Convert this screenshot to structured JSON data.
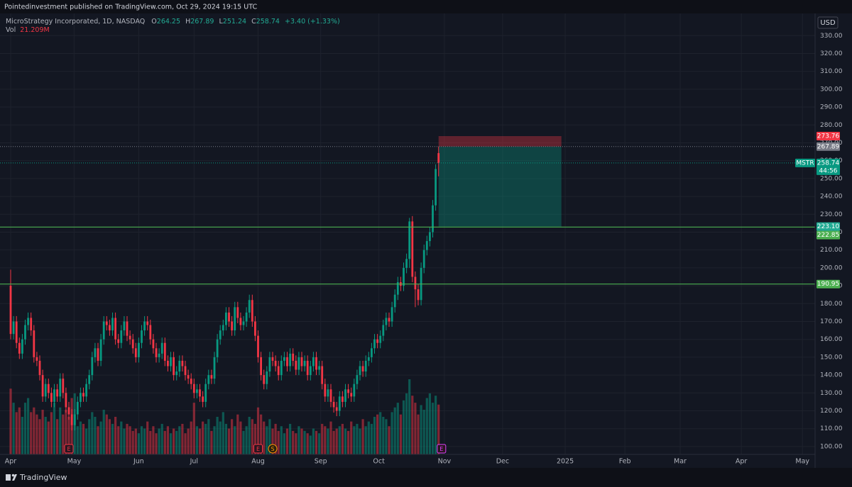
{
  "header": {
    "published": "Pointedinvestment published on TradingView.com, Oct 29, 2024 19:15 UTC"
  },
  "chart_data": {
    "type": "candlestick",
    "title": "MicroStrategy Incorporated, 1D, NASDAQ",
    "ohlc_keys": [
      "O",
      "H",
      "L",
      "C"
    ],
    "change": "+3.40 (+1.33%)",
    "volume_title": "Vol",
    "volume_label": "21.209M",
    "currency": "USD",
    "symbol": "MSTR",
    "countdown": "44:56",
    "colors": {
      "up": "#089981",
      "down": "#f23645",
      "level": "#4caf50"
    },
    "candles": [
      [
        190,
        199,
        160,
        163
      ],
      [
        163,
        173,
        160,
        170
      ],
      [
        170,
        173,
        155,
        158
      ],
      [
        158,
        161,
        149,
        152
      ],
      [
        152,
        163,
        149,
        160
      ],
      [
        160,
        171,
        157,
        168
      ],
      [
        168,
        175,
        165,
        172
      ],
      [
        172,
        175,
        162,
        165
      ],
      [
        165,
        168,
        147,
        150
      ],
      [
        150,
        153,
        145,
        148
      ],
      [
        148,
        151,
        137,
        140
      ],
      [
        140,
        143,
        125,
        128
      ],
      [
        128,
        138,
        125,
        135
      ],
      [
        135,
        138,
        127,
        130
      ],
      [
        130,
        133,
        122,
        125
      ],
      [
        125,
        135,
        122,
        132
      ],
      [
        132,
        135,
        125,
        128
      ],
      [
        128,
        141,
        125,
        138
      ],
      [
        138,
        141,
        127,
        130
      ],
      [
        130,
        133,
        119,
        122
      ],
      [
        122,
        125,
        115,
        118
      ],
      [
        118,
        121,
        109,
        112
      ],
      [
        112,
        121,
        109,
        118
      ],
      [
        118,
        128,
        115,
        125
      ],
      [
        125,
        133,
        122,
        130
      ],
      [
        130,
        133,
        125,
        128
      ],
      [
        128,
        138,
        125,
        135
      ],
      [
        135,
        143,
        132,
        140
      ],
      [
        140,
        153,
        137,
        150
      ],
      [
        150,
        158,
        147,
        155
      ],
      [
        155,
        158,
        145,
        148
      ],
      [
        148,
        163,
        145,
        160
      ],
      [
        160,
        173,
        157,
        170
      ],
      [
        170,
        173,
        165,
        168
      ],
      [
        168,
        171,
        162,
        165
      ],
      [
        165,
        175,
        162,
        172
      ],
      [
        172,
        175,
        157,
        160
      ],
      [
        160,
        163,
        155,
        158
      ],
      [
        158,
        168,
        155,
        165
      ],
      [
        165,
        173,
        162,
        170
      ],
      [
        170,
        173,
        159,
        162
      ],
      [
        162,
        165,
        157,
        160
      ],
      [
        160,
        163,
        152,
        155
      ],
      [
        155,
        158,
        147,
        150
      ],
      [
        150,
        161,
        147,
        158
      ],
      [
        158,
        168,
        155,
        165
      ],
      [
        165,
        173,
        162,
        170
      ],
      [
        170,
        173,
        165,
        168
      ],
      [
        168,
        171,
        157,
        160
      ],
      [
        160,
        163,
        152,
        155
      ],
      [
        155,
        158,
        147,
        150
      ],
      [
        150,
        155,
        147,
        152
      ],
      [
        152,
        161,
        149,
        158
      ],
      [
        158,
        161,
        145,
        148
      ],
      [
        148,
        151,
        142,
        145
      ],
      [
        145,
        153,
        142,
        150
      ],
      [
        150,
        153,
        137,
        140
      ],
      [
        140,
        145,
        137,
        142
      ],
      [
        142,
        151,
        139,
        148
      ],
      [
        148,
        151,
        142,
        145
      ],
      [
        145,
        148,
        137,
        140
      ],
      [
        140,
        143,
        135,
        138
      ],
      [
        138,
        141,
        132,
        135
      ],
      [
        135,
        138,
        127,
        130
      ],
      [
        130,
        135,
        127,
        132
      ],
      [
        132,
        135,
        125,
        128
      ],
      [
        128,
        131,
        122,
        125
      ],
      [
        125,
        138,
        122,
        135
      ],
      [
        135,
        143,
        132,
        140
      ],
      [
        140,
        143,
        135,
        138
      ],
      [
        138,
        153,
        135,
        150
      ],
      [
        150,
        163,
        147,
        160
      ],
      [
        160,
        168,
        157,
        165
      ],
      [
        165,
        171,
        162,
        168
      ],
      [
        168,
        178,
        165,
        175
      ],
      [
        175,
        178,
        167,
        170
      ],
      [
        170,
        173,
        162,
        165
      ],
      [
        165,
        181,
        162,
        178
      ],
      [
        178,
        181,
        169,
        172
      ],
      [
        172,
        175,
        165,
        168
      ],
      [
        168,
        173,
        165,
        170
      ],
      [
        170,
        178,
        167,
        175
      ],
      [
        175,
        185,
        172,
        182
      ],
      [
        182,
        185,
        167,
        170
      ],
      [
        170,
        173,
        159,
        162
      ],
      [
        162,
        165,
        147,
        150
      ],
      [
        150,
        153,
        137,
        140
      ],
      [
        140,
        143,
        132,
        135
      ],
      [
        135,
        145,
        132,
        142
      ],
      [
        142,
        153,
        139,
        150
      ],
      [
        150,
        153,
        145,
        148
      ],
      [
        148,
        151,
        142,
        145
      ],
      [
        145,
        148,
        137,
        140
      ],
      [
        140,
        151,
        137,
        148
      ],
      [
        148,
        153,
        145,
        150
      ],
      [
        150,
        153,
        142,
        145
      ],
      [
        145,
        155,
        142,
        152
      ],
      [
        152,
        155,
        145,
        148
      ],
      [
        148,
        151,
        140,
        143
      ],
      [
        143,
        153,
        140,
        150
      ],
      [
        150,
        153,
        142,
        145
      ],
      [
        145,
        151,
        142,
        148
      ],
      [
        148,
        151,
        137,
        140
      ],
      [
        140,
        148,
        137,
        145
      ],
      [
        145,
        153,
        142,
        150
      ],
      [
        150,
        153,
        140,
        143
      ],
      [
        143,
        148,
        140,
        145
      ],
      [
        145,
        148,
        132,
        135
      ],
      [
        135,
        138,
        125,
        128
      ],
      [
        128,
        135,
        125,
        132
      ],
      [
        132,
        135,
        122,
        125
      ],
      [
        125,
        128,
        119,
        122
      ],
      [
        122,
        125,
        117,
        120
      ],
      [
        120,
        131,
        117,
        128
      ],
      [
        128,
        131,
        122,
        125
      ],
      [
        125,
        135,
        122,
        132
      ],
      [
        132,
        135,
        127,
        130
      ],
      [
        130,
        133,
        125,
        128
      ],
      [
        128,
        138,
        125,
        135
      ],
      [
        135,
        143,
        132,
        140
      ],
      [
        140,
        148,
        137,
        145
      ],
      [
        145,
        148,
        139,
        142
      ],
      [
        142,
        151,
        139,
        148
      ],
      [
        148,
        153,
        145,
        150
      ],
      [
        150,
        158,
        147,
        155
      ],
      [
        155,
        163,
        152,
        160
      ],
      [
        160,
        163,
        155,
        158
      ],
      [
        158,
        165,
        155,
        162
      ],
      [
        162,
        171,
        159,
        168
      ],
      [
        168,
        175,
        165,
        172
      ],
      [
        172,
        175,
        167,
        170
      ],
      [
        170,
        181,
        167,
        178
      ],
      [
        178,
        188,
        175,
        185
      ],
      [
        185,
        195,
        182,
        192
      ],
      [
        192,
        195,
        187,
        190
      ],
      [
        190,
        203,
        187,
        200
      ],
      [
        200,
        208,
        197,
        205
      ],
      [
        205,
        228,
        200,
        226
      ],
      [
        226,
        229,
        192,
        195
      ],
      [
        195,
        198,
        178,
        188
      ],
      [
        188,
        191,
        179,
        182
      ],
      [
        182,
        203,
        179,
        200
      ],
      [
        200,
        213,
        197,
        210
      ],
      [
        210,
        218,
        207,
        215
      ],
      [
        215,
        223,
        212,
        220
      ],
      [
        220,
        238,
        217,
        235
      ],
      [
        235,
        258,
        232,
        255.34
      ],
      [
        264.25,
        267.89,
        251.24,
        258.74
      ]
    ],
    "volumes": [
      28,
      22,
      18,
      20,
      16,
      22,
      24,
      18,
      20,
      17,
      15,
      19,
      16,
      14,
      18,
      22,
      15,
      20,
      17,
      19,
      16,
      24,
      26,
      12,
      14,
      13,
      11,
      15,
      18,
      16,
      12,
      14,
      19,
      17,
      15,
      13,
      16,
      12,
      14,
      11,
      13,
      12,
      10,
      11,
      9,
      12,
      11,
      14,
      10,
      12,
      9,
      11,
      13,
      10,
      12,
      9,
      11,
      10,
      12,
      13,
      9,
      11,
      14,
      22,
      12,
      11,
      14,
      13,
      15,
      10,
      12,
      16,
      14,
      18,
      13,
      11,
      15,
      12,
      17,
      14,
      10,
      12,
      16,
      15,
      13,
      20,
      17,
      14,
      12,
      15,
      11,
      13,
      10,
      12,
      9,
      11,
      13,
      10,
      9,
      12,
      11,
      10,
      9,
      8,
      11,
      10,
      9,
      13,
      12,
      11,
      14,
      10,
      11,
      12,
      13,
      11,
      10,
      14,
      12,
      13,
      11,
      15,
      12,
      14,
      13,
      16,
      17,
      18,
      16,
      15,
      12,
      18,
      20,
      22,
      17,
      23,
      26,
      32,
      25,
      22,
      17,
      21,
      19,
      24,
      26,
      22,
      25,
      21.209
    ],
    "ylim": [
      95.6,
      342.4
    ],
    "yticks": [
      {
        "value": 100,
        "label": "100.00"
      },
      {
        "value": 110,
        "label": "110.00"
      },
      {
        "value": 120,
        "label": "120.00"
      },
      {
        "value": 130,
        "label": "130.00"
      },
      {
        "value": 140,
        "label": "140.00"
      },
      {
        "value": 150,
        "label": "150.00"
      },
      {
        "value": 160,
        "label": "160.00"
      },
      {
        "value": 170,
        "label": "170.00"
      },
      {
        "value": 180,
        "label": "180.00"
      },
      {
        "value": 190,
        "label": "190.00"
      },
      {
        "value": 200,
        "label": "200.00"
      },
      {
        "value": 210,
        "label": "210.00"
      },
      {
        "value": 220,
        "label": "220.00"
      },
      {
        "value": 230,
        "label": "230.00"
      },
      {
        "value": 240,
        "label": "240.00"
      },
      {
        "value": 250,
        "label": "250.00"
      },
      {
        "value": 260,
        "label": "260.00"
      },
      {
        "value": 270,
        "label": "270.00"
      },
      {
        "value": 280,
        "label": "280.00"
      },
      {
        "value": 290,
        "label": "290.00"
      },
      {
        "value": 300,
        "label": "300.00"
      },
      {
        "value": 310,
        "label": "310.00"
      },
      {
        "value": 320,
        "label": "320.00"
      },
      {
        "value": 330,
        "label": "330.00"
      }
    ],
    "xlim": [
      -3.66,
      276.34
    ],
    "xticks": [
      {
        "value": 0,
        "label": "Apr"
      },
      {
        "value": 21.8,
        "label": "May"
      },
      {
        "value": 44,
        "label": "Jun"
      },
      {
        "value": 63,
        "label": "Jul"
      },
      {
        "value": 85,
        "label": "Aug"
      },
      {
        "value": 106.5,
        "label": "Sep"
      },
      {
        "value": 126.5,
        "label": "Oct"
      },
      {
        "value": 149,
        "label": "Nov"
      },
      {
        "value": 169,
        "label": "Dec"
      },
      {
        "value": 190.5,
        "label": "2025"
      },
      {
        "value": 211,
        "label": "Feb"
      },
      {
        "value": 230,
        "label": "Mar"
      },
      {
        "value": 251,
        "label": "Apr"
      },
      {
        "value": 272,
        "label": "May"
      }
    ],
    "grid": true,
    "levels": [
      {
        "value": 222.85,
        "label": "222.85"
      },
      {
        "value": 190.95,
        "label": "190.95"
      }
    ],
    "position": {
      "stop": 273.76,
      "entry": 267.89,
      "target": {
        "value": 223.1,
        "label": "223.10"
      }
    },
    "events": [
      {
        "x": 20,
        "label": "E",
        "color": "#f23645"
      },
      {
        "x": 85,
        "label": "E",
        "color": "#f23645"
      },
      {
        "x": 90,
        "label": "S",
        "color": "#ff9800"
      },
      {
        "x": 148,
        "label": "E",
        "color": "#e040fb"
      }
    ]
  },
  "footer": {
    "brand": "TradingView"
  }
}
